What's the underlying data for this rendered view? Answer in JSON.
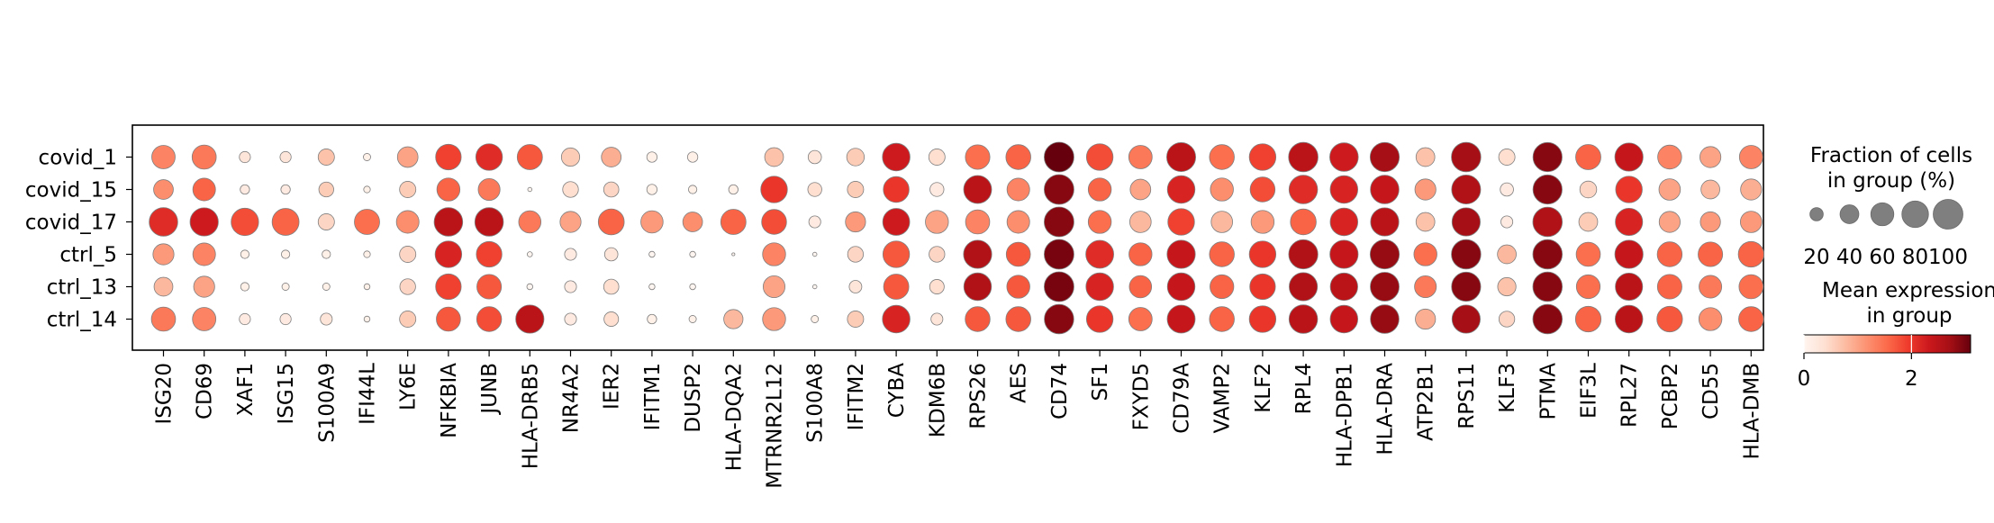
{
  "chart_data": {
    "type": "dotplot",
    "genes": [
      "ISG20",
      "CD69",
      "XAF1",
      "ISG15",
      "S100A9",
      "IFI44L",
      "LY6E",
      "NFKBIA",
      "JUNB",
      "HLA-DRB5",
      "NR4A2",
      "IER2",
      "IFITM1",
      "DUSP2",
      "HLA-DQA2",
      "MTRNR2L12",
      "S100A8",
      "IFITM2",
      "CYBA",
      "KDM6B",
      "RPS26",
      "AES",
      "CD74",
      "SF1",
      "FXYD5",
      "CD79A",
      "VAMP2",
      "KLF2",
      "RPL4",
      "HLA-DPB1",
      "HLA-DRA",
      "ATP2B1",
      "RPS11",
      "KLF3",
      "PTMA",
      "EIF3L",
      "RPL27",
      "PCBP2",
      "CD55",
      "HLA-DMB"
    ],
    "groups": [
      "covid_1",
      "covid_15",
      "covid_17",
      "ctrl_5",
      "ctrl_13",
      "ctrl_14"
    ],
    "fraction_pct": [
      [
        62,
        66,
        14,
        14,
        30,
        6,
        48,
        74,
        80,
        72,
        38,
        44,
        12,
        12,
        0,
        40,
        20,
        35,
        86,
        30,
        68,
        70,
        100,
        80,
        62,
        95,
        70,
        80,
        98,
        92,
        96,
        40,
        98,
        30,
        96,
        72,
        90,
        65,
        50,
        62
      ],
      [
        44,
        58,
        10,
        10,
        25,
        5,
        30,
        60,
        54,
        2,
        28,
        26,
        12,
        8,
        10,
        80,
        22,
        30,
        75,
        22,
        88,
        58,
        100,
        60,
        48,
        86,
        60,
        70,
        92,
        86,
        92,
        50,
        95,
        20,
        96,
        32,
        80,
        52,
        40,
        50
      ],
      [
        92,
        90,
        85,
        82,
        30,
        72,
        58,
        92,
        92,
        56,
        50,
        76,
        56,
        44,
        72,
        70,
        16,
        46,
        82,
        60,
        66,
        58,
        100,
        60,
        52,
        80,
        52,
        60,
        75,
        86,
        90,
        40,
        90,
        16,
        98,
        40,
        84,
        50,
        46,
        52
      ],
      [
        50,
        58,
        8,
        8,
        8,
        5,
        30,
        80,
        74,
        3,
        16,
        20,
        4,
        4,
        1,
        60,
        2,
        28,
        80,
        28,
        90,
        66,
        100,
        88,
        60,
        90,
        70,
        80,
        96,
        90,
        96,
        60,
        98,
        40,
        98,
        66,
        90,
        70,
        68,
        74
      ],
      [
        40,
        50,
        8,
        6,
        6,
        4,
        28,
        74,
        68,
        4,
        16,
        26,
        4,
        4,
        0,
        54,
        2,
        18,
        72,
        24,
        86,
        60,
        100,
        86,
        56,
        86,
        64,
        74,
        90,
        85,
        94,
        54,
        96,
        38,
        98,
        64,
        84,
        68,
        58,
        66
      ],
      [
        66,
        62,
        14,
        14,
        16,
        4,
        30,
        66,
        70,
        90,
        16,
        24,
        10,
        6,
        42,
        60,
        6,
        30,
        86,
        16,
        70,
        70,
        98,
        80,
        62,
        88,
        70,
        80,
        92,
        86,
        92,
        46,
        90,
        28,
        98,
        74,
        86,
        74,
        60,
        70
      ]
    ],
    "mean_expr": [
      [
        1.3,
        1.4,
        0.3,
        0.3,
        0.7,
        0.1,
        1.0,
        1.9,
        2.1,
        1.7,
        0.6,
        0.9,
        0.1,
        0.1,
        0.0,
        0.7,
        0.3,
        0.6,
        2.3,
        0.4,
        1.5,
        1.6,
        3.1,
        1.8,
        1.4,
        2.5,
        1.5,
        1.9,
        2.5,
        2.3,
        2.7,
        0.7,
        2.7,
        0.4,
        2.9,
        1.6,
        2.4,
        1.3,
        1.0,
        1.3
      ],
      [
        1.2,
        1.6,
        0.2,
        0.2,
        0.6,
        0.1,
        0.6,
        1.6,
        1.4,
        0.0,
        0.4,
        0.5,
        0.1,
        0.1,
        0.1,
        2.0,
        0.4,
        0.6,
        2.0,
        0.2,
        2.5,
        1.3,
        2.9,
        1.6,
        1.0,
        2.2,
        1.2,
        1.8,
        2.1,
        2.2,
        2.4,
        1.1,
        2.6,
        0.2,
        2.9,
        0.5,
        2.0,
        1.0,
        0.8,
        0.9
      ],
      [
        2.1,
        2.3,
        1.8,
        1.6,
        0.5,
        1.5,
        1.2,
        2.5,
        2.5,
        1.4,
        1.0,
        1.6,
        1.1,
        1.2,
        1.6,
        1.8,
        0.2,
        1.1,
        2.3,
        1.0,
        1.3,
        1.2,
        2.9,
        1.5,
        0.8,
        1.9,
        0.8,
        1.1,
        1.6,
        2.2,
        2.5,
        0.7,
        2.7,
        0.2,
        2.6,
        0.6,
        2.2,
        1.0,
        1.1,
        1.1
      ],
      [
        1.1,
        1.3,
        0.1,
        0.1,
        0.1,
        0.1,
        0.5,
        2.2,
        1.9,
        0.0,
        0.2,
        0.3,
        0.0,
        0.0,
        0.0,
        1.3,
        0.0,
        0.5,
        1.7,
        0.5,
        2.6,
        1.7,
        3.0,
        2.1,
        1.6,
        2.4,
        1.6,
        2.0,
        2.6,
        2.4,
        2.8,
        1.5,
        2.9,
        0.8,
        2.9,
        1.5,
        2.4,
        1.6,
        1.6,
        1.6
      ],
      [
        0.8,
        1.0,
        0.1,
        0.1,
        0.1,
        0.1,
        0.5,
        1.9,
        1.7,
        0.0,
        0.2,
        0.4,
        0.0,
        0.0,
        0.0,
        1.0,
        0.0,
        0.3,
        1.7,
        0.4,
        2.6,
        1.7,
        3.0,
        2.2,
        1.6,
        2.4,
        1.6,
        2.0,
        2.6,
        2.5,
        2.8,
        1.4,
        2.9,
        0.7,
        2.9,
        1.5,
        2.5,
        1.6,
        1.4,
        1.5
      ],
      [
        1.4,
        1.3,
        0.2,
        0.2,
        0.3,
        0.1,
        0.6,
        1.7,
        1.8,
        2.5,
        0.2,
        0.4,
        0.1,
        0.1,
        0.8,
        1.1,
        0.1,
        0.6,
        2.2,
        0.3,
        1.7,
        1.7,
        2.9,
        2.0,
        1.5,
        2.4,
        1.6,
        2.0,
        2.5,
        2.4,
        2.8,
        0.9,
        2.7,
        0.5,
        2.9,
        1.6,
        2.5,
        1.7,
        1.2,
        1.6
      ]
    ],
    "size_legend": {
      "title_line1": "Fraction of cells",
      "title_line2": "in group (%)",
      "values": [
        20,
        40,
        60,
        80,
        100
      ],
      "labels": [
        "20",
        "40",
        "60",
        "80",
        "100"
      ]
    },
    "color_legend": {
      "title_line1": "Mean expression",
      "title_line2": "in group",
      "range": [
        0,
        3.1
      ],
      "ticks": [
        0,
        2
      ],
      "tick_labels": [
        "0",
        "2"
      ],
      "colormap": "Reds",
      "stops": [
        "#fff5f0",
        "#fee0d2",
        "#fcbba1",
        "#fc9272",
        "#fb6a4a",
        "#ef3b2c",
        "#cb181d",
        "#a50f15",
        "#67000d"
      ]
    }
  }
}
